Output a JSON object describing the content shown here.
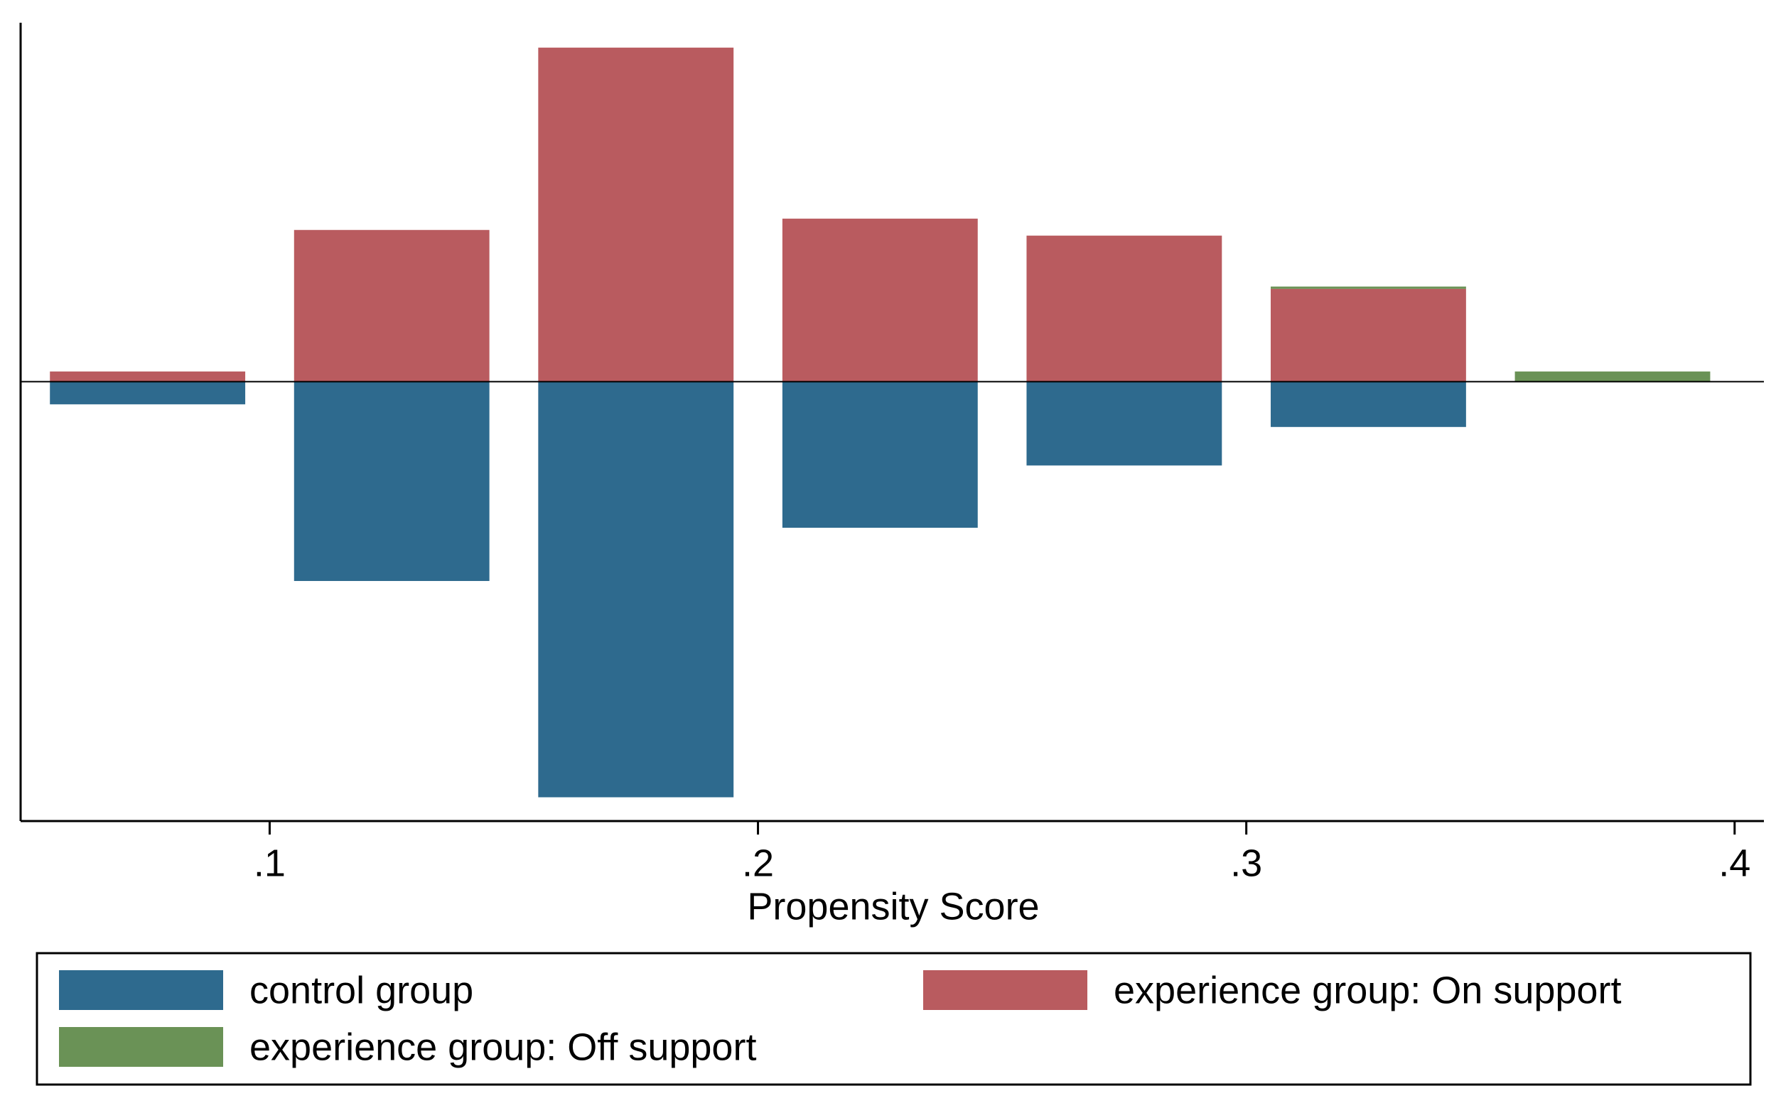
{
  "chart_data": {
    "type": "histogram",
    "x_label": "Propensity Score",
    "bins": [
      0.05,
      0.1,
      0.15,
      0.2,
      0.25,
      0.3,
      0.35,
      0.4
    ],
    "series": [
      {
        "name": "control group",
        "color": "#2e6a8e",
        "values": [
          -20,
          -176,
          -367,
          -129,
          -74,
          -40,
          0
        ]
      },
      {
        "name": "experience group: On support",
        "color": "#b95b5f",
        "values": [
          9,
          134,
          295,
          144,
          129,
          82,
          0
        ]
      },
      {
        "name": "experience group: Off support",
        "color": "#6a9256",
        "values": [
          0,
          0,
          0,
          0,
          0,
          2,
          9
        ],
        "stacked_on": "experience group: On support"
      }
    ],
    "xlim": [
      0.049,
      0.406
    ],
    "ylim": [
      -388,
      317
    ],
    "xticks": [
      {
        "value": 0.1,
        "label": ".1"
      },
      {
        "value": 0.2,
        "label": ".2"
      },
      {
        "value": 0.3,
        "label": ".3"
      },
      {
        "value": 0.4,
        "label": ".4"
      }
    ],
    "legend": "bottom"
  }
}
